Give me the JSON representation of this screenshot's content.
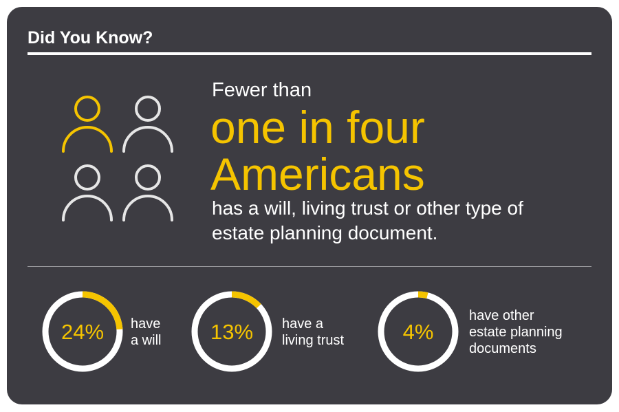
{
  "header": {
    "title": "Did You Know?"
  },
  "headline": {
    "intro": "Fewer than",
    "highlight_lines": [
      "one in four",
      "Americans"
    ],
    "body_lines": [
      "has a will, living trust or other type of",
      "estate planning document."
    ]
  },
  "stats": [
    {
      "value": 24,
      "value_label": "24%",
      "label_lines": [
        "have",
        "a will"
      ]
    },
    {
      "value": 13,
      "value_label": "13%",
      "label_lines": [
        "have a",
        "living trust"
      ]
    },
    {
      "value": 4,
      "value_label": "4%",
      "label_lines": [
        "have other",
        "estate planning",
        "documents"
      ]
    }
  ]
}
